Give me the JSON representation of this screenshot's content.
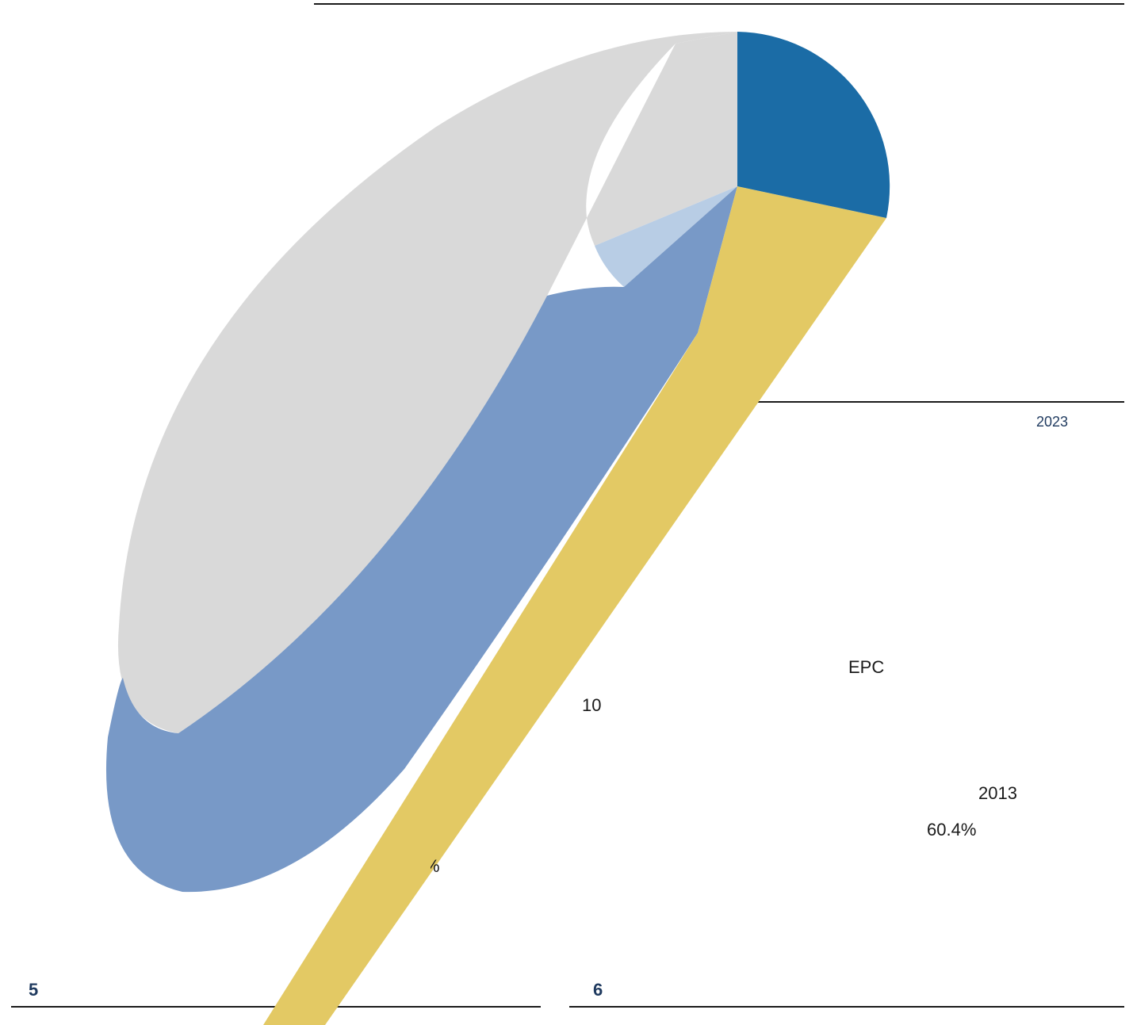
{
  "chart_data": {
    "type": "pie",
    "slices": [
      {
        "color": "#1b6ca6",
        "value": 0.221
      },
      {
        "color": "#e3c964",
        "value": 0.186
      },
      {
        "color": "#7899c7",
        "value": 0.069
      },
      {
        "color": "#b8cde5",
        "value": 0.028
      },
      {
        "color": "#d9d9d9",
        "value": 0.496
      }
    ],
    "labels": {
      "year_top": "2023",
      "epc": "EPC",
      "ten": "10",
      "year_2013": "2013",
      "percent": "60.4%",
      "pct_sign": "%"
    }
  },
  "panels": {
    "left_number": "5",
    "right_number": "6"
  },
  "colors": {
    "blue_dark": "#1b6ca6",
    "yellow": "#e3c964",
    "blue_mid": "#7899c7",
    "blue_light": "#b8cde5",
    "grey": "#d9d9d9"
  }
}
